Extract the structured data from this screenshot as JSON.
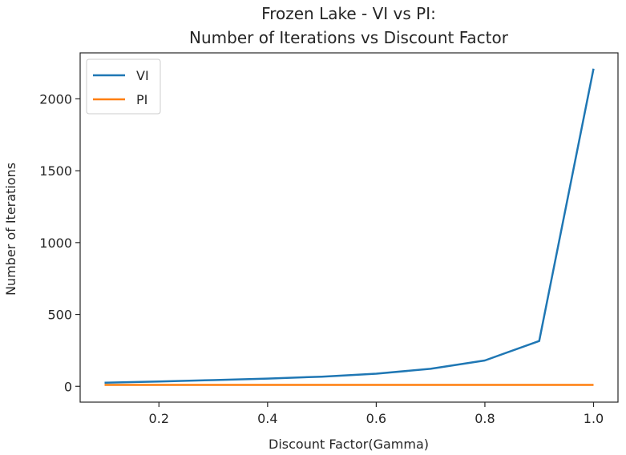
{
  "chart_data": {
    "type": "line",
    "title": "Frozen Lake - VI vs PI:",
    "subtitle": "Number of Iterations vs Discount Factor",
    "xlabel": "Discount Factor(Gamma)",
    "ylabel": "Number of Iterations",
    "xlim": [
      0.055,
      1.045
    ],
    "ylim": [
      -110,
      2320
    ],
    "xticks": [
      0.2,
      0.4,
      0.6,
      0.8,
      1.0
    ],
    "xtick_labels": [
      "0.2",
      "0.4",
      "0.6",
      "0.8",
      "1.0"
    ],
    "yticks": [
      0,
      500,
      1000,
      1500,
      2000
    ],
    "ytick_labels": [
      "0",
      "500",
      "1000",
      "1500",
      "2000"
    ],
    "grid": false,
    "legend_position": "top-left",
    "x": [
      0.1,
      0.2,
      0.3,
      0.4,
      0.5,
      0.6,
      0.7,
      0.8,
      0.9,
      1.0
    ],
    "series": [
      {
        "name": "VI",
        "color": "#1f77b4",
        "values": [
          25,
          34,
          43,
          54,
          67,
          88,
          122,
          180,
          315,
          2210
        ]
      },
      {
        "name": "PI",
        "color": "#ff7f0e",
        "values": [
          10,
          10,
          10,
          10,
          10,
          10,
          10,
          10,
          10,
          10
        ]
      }
    ]
  }
}
